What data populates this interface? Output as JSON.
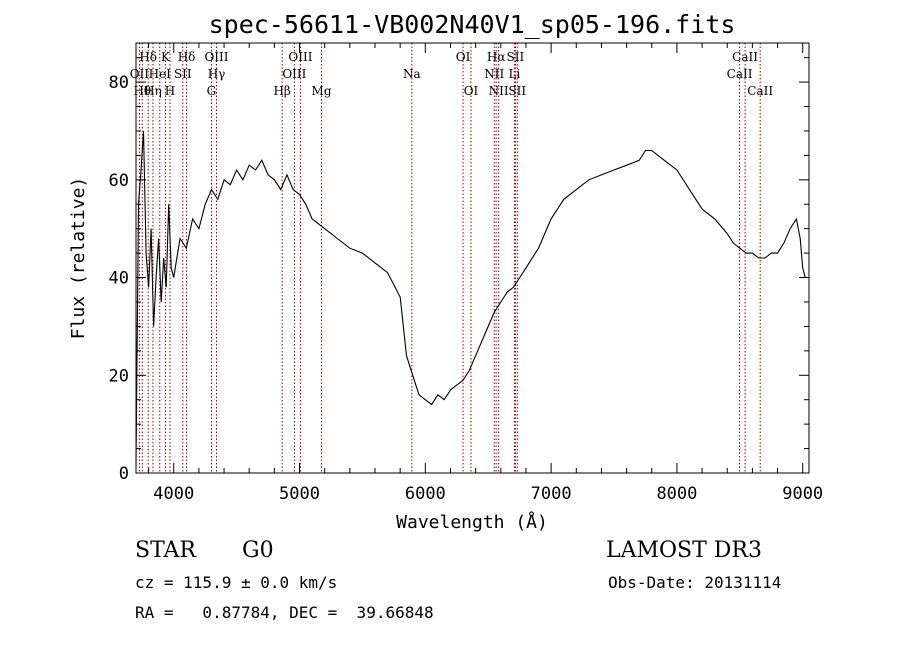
{
  "chart_data": {
    "type": "line",
    "title": "spec-56611-VB002N40V1_sp05-196.fits",
    "xlabel": "Wavelength (Å)",
    "ylabel": "Flux (relative)",
    "xlim": [
      3700,
      9050
    ],
    "ylim": [
      0,
      88
    ],
    "x_ticks": [
      4000,
      5000,
      6000,
      7000,
      8000,
      9000
    ],
    "y_ticks": [
      0,
      20,
      40,
      60,
      80
    ],
    "series": [
      {
        "name": "flux",
        "color": "#000000",
        "x": [
          3700,
          3720,
          3740,
          3760,
          3780,
          3800,
          3820,
          3840,
          3860,
          3880,
          3900,
          3920,
          3940,
          3960,
          3980,
          4000,
          4050,
          4100,
          4150,
          4200,
          4250,
          4300,
          4350,
          4400,
          4450,
          4500,
          4550,
          4600,
          4650,
          4700,
          4750,
          4800,
          4850,
          4900,
          4950,
          5000,
          5050,
          5100,
          5150,
          5200,
          5300,
          5400,
          5500,
          5600,
          5700,
          5800,
          5850,
          5900,
          5950,
          6000,
          6050,
          6100,
          6150,
          6200,
          6250,
          6300,
          6350,
          6400,
          6450,
          6500,
          6550,
          6600,
          6650,
          6700,
          6750,
          6800,
          6900,
          7000,
          7100,
          7200,
          7300,
          7400,
          7500,
          7600,
          7700,
          7750,
          7800,
          7850,
          7900,
          8000,
          8100,
          8200,
          8300,
          8400,
          8450,
          8500,
          8550,
          8600,
          8650,
          8700,
          8750,
          8800,
          8850,
          8900,
          8950,
          8980,
          9000,
          9020,
          9040
        ],
        "values": [
          2,
          55,
          62,
          70,
          45,
          38,
          50,
          30,
          40,
          48,
          35,
          44,
          38,
          55,
          42,
          40,
          48,
          46,
          52,
          50,
          55,
          58,
          56,
          60,
          59,
          62,
          60,
          63,
          62,
          64,
          61,
          60,
          58,
          61,
          58,
          57,
          55,
          52,
          51,
          50,
          48,
          46,
          45,
          43,
          41,
          36,
          24,
          20,
          16,
          15,
          14,
          16,
          15,
          17,
          18,
          19,
          21,
          24,
          27,
          30,
          33,
          35,
          37,
          38,
          40,
          42,
          46,
          52,
          56,
          58,
          60,
          61,
          62,
          63,
          64,
          66,
          66,
          65,
          64,
          62,
          58,
          54,
          52,
          49,
          47,
          46,
          45,
          45,
          44,
          44,
          45,
          45,
          47,
          50,
          52,
          48,
          42,
          40,
          40
        ]
      }
    ],
    "line_color": "#990000",
    "line_markers": [
      {
        "wl": 3727,
        "labels": [
          "OII"
        ],
        "row": 2
      },
      {
        "wl": 3750,
        "labels": [
          "Hθ"
        ],
        "row": 3
      },
      {
        "wl": 3797,
        "labels": [
          "Hδ"
        ],
        "row": 1
      },
      {
        "wl": 3835,
        "labels": [
          "Hη"
        ],
        "row": 3
      },
      {
        "wl": 3889,
        "labels": [
          "HeI"
        ],
        "row": 2
      },
      {
        "wl": 3934,
        "labels": [
          "K"
        ],
        "row": 1
      },
      {
        "wl": 3970,
        "labels": [
          "H"
        ],
        "row": 3
      },
      {
        "wl": 4072,
        "labels": [
          "SII"
        ],
        "row": 2
      },
      {
        "wl": 4102,
        "labels": [
          "Hδ"
        ],
        "row": 1
      },
      {
        "wl": 4300,
        "labels": [
          "G"
        ],
        "row": 3
      },
      {
        "wl": 4340,
        "labels": [
          "OIII",
          "Hγ"
        ],
        "row": 1
      },
      {
        "wl": 4862,
        "labels": [
          "Hβ"
        ],
        "row": 3
      },
      {
        "wl": 4959,
        "labels": [
          "OIII"
        ],
        "row": 2
      },
      {
        "wl": 5007,
        "labels": [
          "OIII"
        ],
        "row": 1
      },
      {
        "wl": 5175,
        "labels": [
          "Mg"
        ],
        "row": 3
      },
      {
        "wl": 5893,
        "labels": [
          "Na"
        ],
        "row": 2
      },
      {
        "wl": 6300,
        "labels": [
          "OI"
        ],
        "row": 1
      },
      {
        "wl": 6363,
        "labels": [
          "OI"
        ],
        "row": 3
      },
      {
        "wl": 6548,
        "labels": [
          "NII"
        ],
        "row": 2
      },
      {
        "wl": 6563,
        "labels": [
          "Hα"
        ],
        "row": 1
      },
      {
        "wl": 6583,
        "labels": [
          "NII"
        ],
        "row": 3
      },
      {
        "wl": 6708,
        "labels": [
          "Li"
        ],
        "row": 2
      },
      {
        "wl": 6716,
        "labels": [
          "SII"
        ],
        "row": 1
      },
      {
        "wl": 6731,
        "labels": [
          "SII"
        ],
        "row": 3
      },
      {
        "wl": 8498,
        "labels": [
          "CaII"
        ],
        "row": 2
      },
      {
        "wl": 8542,
        "labels": [
          "CaII"
        ],
        "row": 1
      },
      {
        "wl": 8662,
        "labels": [
          "CaII"
        ],
        "row": 3
      }
    ]
  },
  "info": {
    "object_class": "STAR",
    "subclass": "G0",
    "survey": "LAMOST DR3",
    "cz": "cz = 115.9 ± 0.0 km/s",
    "obs_date": "Obs-Date: 20131114",
    "coords": "RA =   0.87784, DEC =  39.66848"
  }
}
